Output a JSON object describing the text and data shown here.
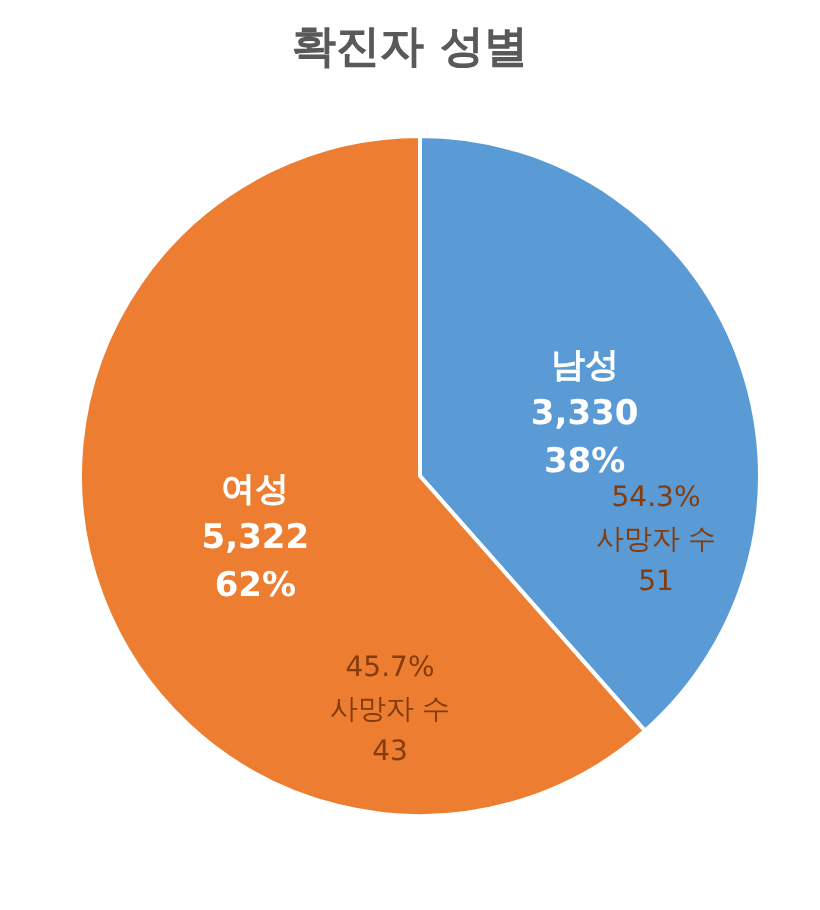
{
  "chart_data": {
    "type": "pie",
    "title": "확진자 성별",
    "categories": [
      "남성",
      "여성"
    ],
    "values": [
      3330,
      5322
    ],
    "colors": [
      "#5b9bd5",
      "#ed7d31"
    ],
    "value_labels": [
      "3,330\n38%",
      "5,322\n62%"
    ],
    "annotations": [
      "54.3%\n사망자 수\n51",
      "45.7%\n사망자 수\n43"
    ],
    "legend": false
  }
}
